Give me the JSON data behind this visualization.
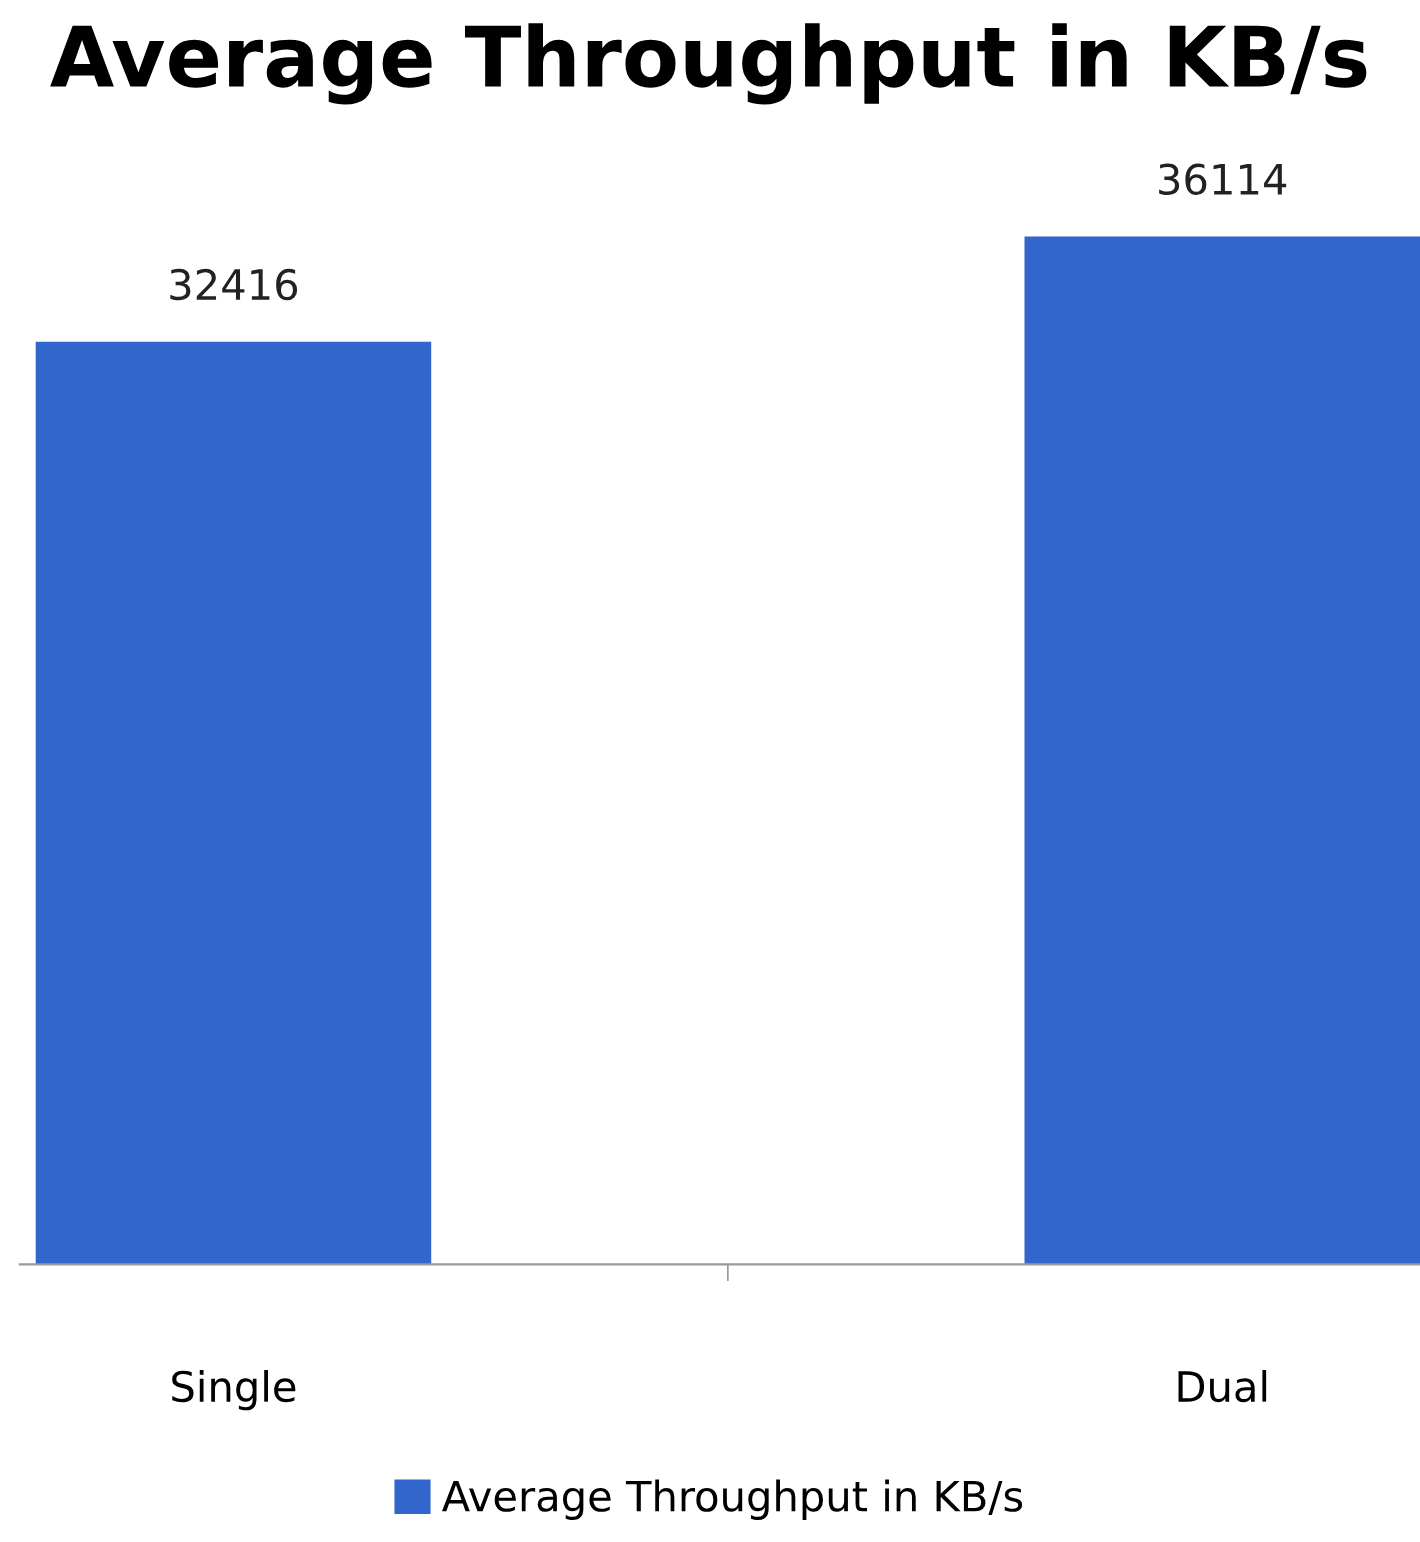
{
  "chart_data": {
    "type": "bar",
    "title": "Average Throughput in KB/s",
    "categories": [
      "Single",
      "Dual"
    ],
    "series": [
      {
        "name": "Average Throughput in KB/s",
        "color": "#3366cc",
        "values": [
          32416,
          36114
        ]
      }
    ],
    "data_labels": true,
    "legend": "bottom",
    "grid": false,
    "tick_labels": "x"
  }
}
